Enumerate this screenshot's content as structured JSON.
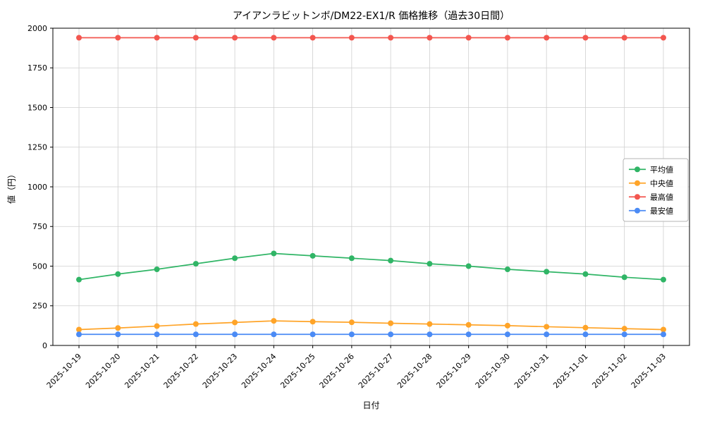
{
  "chart_data": {
    "type": "line",
    "title": "アイアンラビットンボ/DM22-EX1/R 価格推移（過去30日間）",
    "xlabel": "日付",
    "ylabel": "値（円）",
    "ylim": [
      0,
      2000
    ],
    "yticks": [
      0,
      250,
      500,
      750,
      1000,
      1250,
      1500,
      1750,
      2000
    ],
    "grid": true,
    "legend_position": "center right",
    "grid_color": "#cfcfcf",
    "categories": [
      "2025-10-19",
      "2025-10-20",
      "2025-10-21",
      "2025-10-22",
      "2025-10-23",
      "2025-10-24",
      "2025-10-25",
      "2025-10-26",
      "2025-10-27",
      "2025-10-28",
      "2025-10-29",
      "2025-10-30",
      "2025-10-31",
      "2025-11-01",
      "2025-11-02",
      "2025-11-03"
    ],
    "series": [
      {
        "key": "average",
        "name": "平均値",
        "color": "#30b566",
        "values": [
          415,
          450,
          480,
          515,
          550,
          580,
          565,
          550,
          535,
          515,
          500,
          480,
          465,
          450,
          430,
          415
        ]
      },
      {
        "key": "median",
        "name": "中央値",
        "color": "#ffa428",
        "values": [
          100,
          110,
          122,
          135,
          145,
          155,
          150,
          146,
          140,
          135,
          130,
          125,
          118,
          112,
          106,
          100
        ]
      },
      {
        "key": "max",
        "name": "最高値",
        "color": "#f3564f",
        "values": [
          1940,
          1940,
          1940,
          1940,
          1940,
          1940,
          1940,
          1940,
          1940,
          1940,
          1940,
          1940,
          1940,
          1940,
          1940,
          1940
        ]
      },
      {
        "key": "min",
        "name": "最安値",
        "color": "#4b8bf5",
        "values": [
          70,
          70,
          70,
          70,
          70,
          70,
          70,
          70,
          70,
          70,
          70,
          70,
          70,
          70,
          70,
          70
        ]
      }
    ]
  }
}
